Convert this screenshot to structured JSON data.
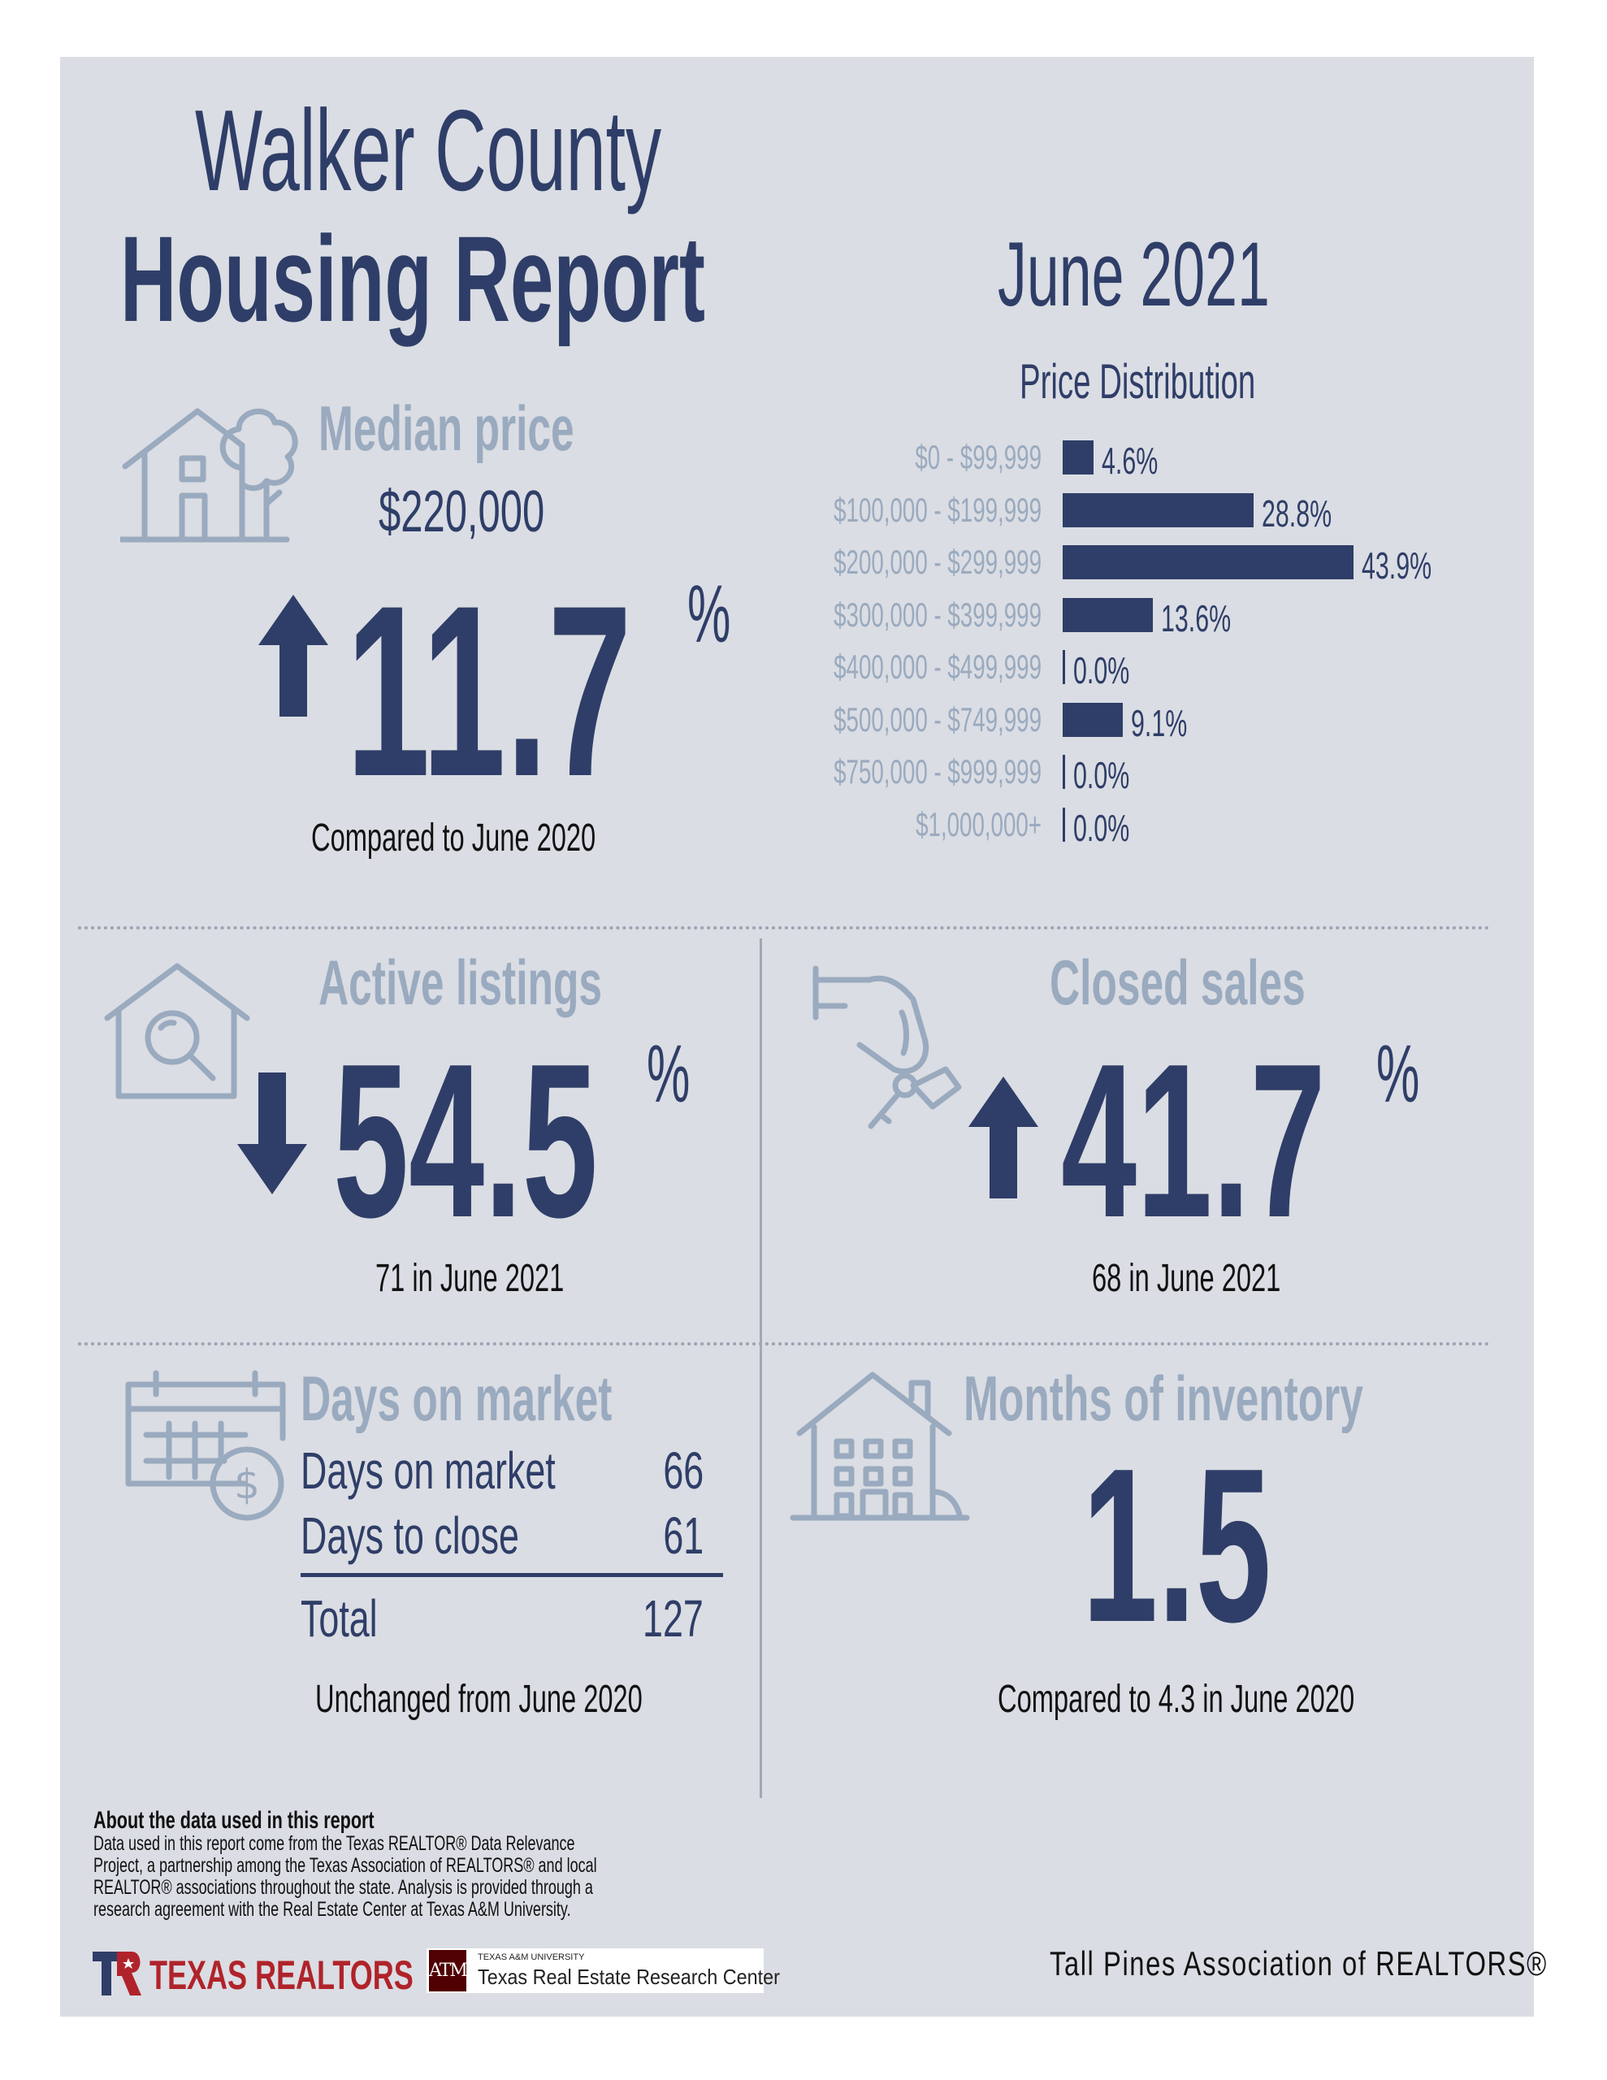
{
  "header": {
    "title_line1": "Walker County",
    "title_line2": "Housing Report",
    "month": "June 2021"
  },
  "median_price": {
    "title": "Median price",
    "value": "$220,000",
    "change": "11.7",
    "percent_sign": "%",
    "direction": "up",
    "comparison": "Compared to June 2020"
  },
  "price_distribution": {
    "title": "Price Distribution"
  },
  "chart_data": {
    "type": "bar",
    "orientation": "horizontal",
    "title": "Price Distribution",
    "categories": [
      "$0 - $99,999",
      "$100,000 - $199,999",
      "$200,000 - $299,999",
      "$300,000 - $399,999",
      "$400,000 - $499,999",
      "$500,000 - $749,999",
      "$750,000 - $999,999",
      "$1,000,000+"
    ],
    "values": [
      4.6,
      28.8,
      43.9,
      13.6,
      0.0,
      9.1,
      0.0,
      0.0
    ],
    "labels": [
      "4.6%",
      "28.8%",
      "43.9%",
      "13.6%",
      "0.0%",
      "9.1%",
      "0.0%",
      "0.0%"
    ],
    "bar_color": "#2f3e68"
  },
  "active_listings": {
    "title": "Active listings",
    "change": "54.5",
    "percent_sign": "%",
    "direction": "down",
    "caption": "71 in June 2021"
  },
  "closed_sales": {
    "title": "Closed sales",
    "change": "41.7",
    "percent_sign": "%",
    "direction": "up",
    "caption": "68 in June 2021"
  },
  "days_on_market": {
    "title": "Days on market",
    "rows": [
      {
        "label": "Days on market",
        "value": "66"
      },
      {
        "label": "Days to close",
        "value": "61"
      }
    ],
    "total_label": "Total",
    "total_value": "127",
    "caption": "Unchanged from June 2020"
  },
  "months_inventory": {
    "title": "Months of inventory",
    "value": "1.5",
    "caption": "Compared to 4.3 in June 2020"
  },
  "about": {
    "heading": "About the data used in this report",
    "body": "Data used in this report come from the Texas REALTOR® Data Relevance Project, a partnership among the Texas Association of REALTORS® and local REALTOR® associations throughout the state. Analysis is provided through a research agreement with the Real Estate Center at Texas A&M University."
  },
  "footer": {
    "texas_realtors": "TEXAS REALTORS",
    "tamu_small": "TEXAS A&M UNIVERSITY",
    "tamu_center": "Texas Real Estate Research Center",
    "tamu_mark": "ATM",
    "association": "Tall Pines Association of REALTORS®"
  },
  "colors": {
    "navy": "#2f3e68",
    "steel": "#9aaabf",
    "panel": "#dadde3",
    "texas_red": "#b0232a"
  }
}
